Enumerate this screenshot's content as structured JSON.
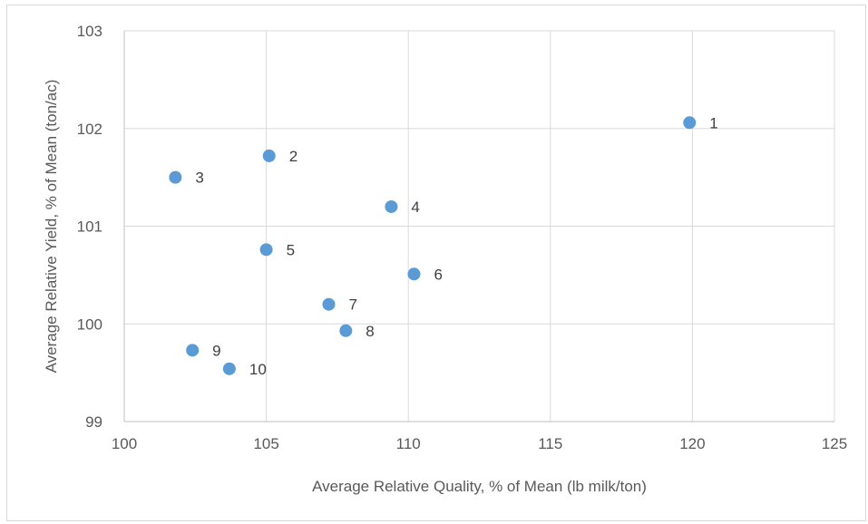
{
  "chart_data": {
    "type": "scatter",
    "title": "",
    "xlabel": "Average Relative Quality, % of Mean (lb milk/ton)",
    "ylabel": "Average Relative Yield, % of Mean (ton/ac)",
    "xlim": [
      100,
      125
    ],
    "ylim": [
      99,
      103
    ],
    "xticks": [
      "100",
      "105",
      "110",
      "115",
      "120",
      "125"
    ],
    "yticks": [
      "99",
      "100",
      "101",
      "102",
      "103"
    ],
    "grid": true,
    "legend": "none",
    "marker_color": "#5b9bd5",
    "points": [
      {
        "label": "1",
        "x": 119.9,
        "y": 102.06
      },
      {
        "label": "2",
        "x": 105.1,
        "y": 101.72
      },
      {
        "label": "3",
        "x": 101.8,
        "y": 101.5
      },
      {
        "label": "4",
        "x": 109.4,
        "y": 101.2
      },
      {
        "label": "5",
        "x": 105.0,
        "y": 100.76
      },
      {
        "label": "6",
        "x": 110.2,
        "y": 100.51
      },
      {
        "label": "7",
        "x": 107.2,
        "y": 100.2
      },
      {
        "label": "8",
        "x": 107.8,
        "y": 99.93
      },
      {
        "label": "9",
        "x": 102.4,
        "y": 99.73
      },
      {
        "label": "10",
        "x": 103.7,
        "y": 99.54
      }
    ]
  }
}
